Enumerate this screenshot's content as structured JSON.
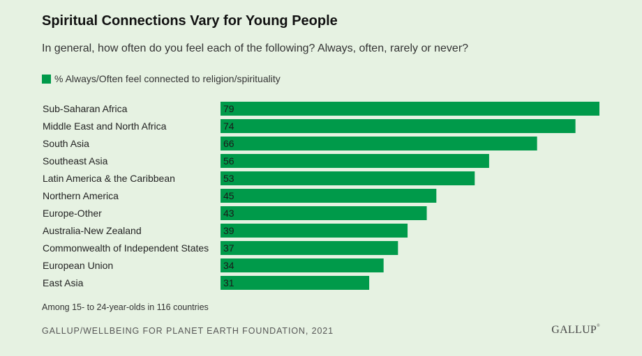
{
  "title": "Spiritual Connections Vary for Young People",
  "subtitle": "In general, how often do you feel each of the following? Always, often, rarely or never?",
  "note": "Among 15- to 24-year-olds in 116 countries",
  "source": "GALLUP/WELLBEING FOR PLANET EARTH FOUNDATION, 2021",
  "logo": "GALLUP",
  "colors": {
    "bar": "#009a4a",
    "background": "#e6f2e2"
  },
  "chart_data": {
    "type": "bar",
    "orientation": "horizontal",
    "legend": "% Always/Often feel connected to religion/spirituality",
    "legend_position": "top-left",
    "categories": [
      "Sub-Saharan Africa",
      "Middle East and North Africa",
      "South Asia",
      "Southeast Asia",
      "Latin America & the Caribbean",
      "Northern America",
      "Europe-Other",
      "Australia-New Zealand",
      "Commonwealth of Independent States",
      "European Union",
      "East Asia"
    ],
    "values": [
      79,
      74,
      66,
      56,
      53,
      45,
      43,
      39,
      37,
      34,
      31
    ],
    "xlim": [
      0,
      79
    ],
    "grid": false
  }
}
